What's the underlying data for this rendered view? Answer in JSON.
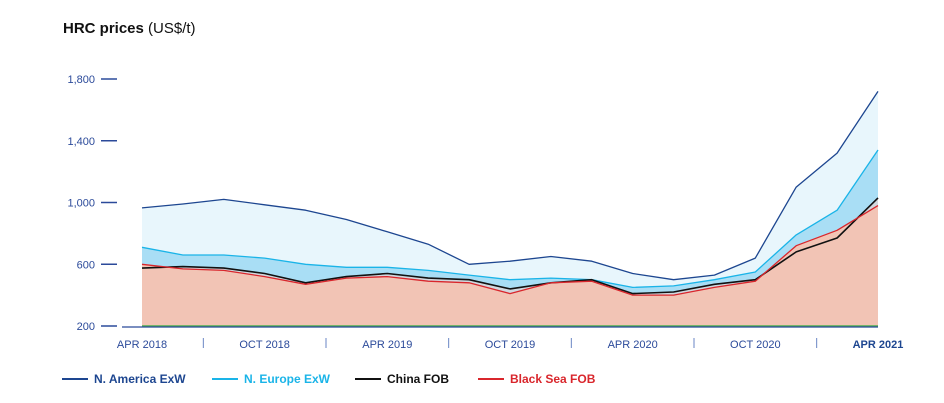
{
  "title": "HRC prices",
  "unit": "(US$/t)",
  "chart_data": {
    "type": "line",
    "title": "HRC prices",
    "ylabel": "US$/t",
    "ylim": [
      200,
      1800
    ],
    "yticks": [
      200,
      600,
      1000,
      1400,
      1800
    ],
    "ytick_labels": [
      "200",
      "600",
      "1,000",
      "1,400",
      "1,800"
    ],
    "x": [
      "2018-04",
      "2018-06",
      "2018-08",
      "2018-10",
      "2018-12",
      "2019-02",
      "2019-04",
      "2019-06",
      "2019-08",
      "2019-10",
      "2019-12",
      "2020-02",
      "2020-04",
      "2020-06",
      "2020-08",
      "2020-10",
      "2020-12",
      "2021-02",
      "2021-04"
    ],
    "xticks": [
      "2018-04",
      "2018-10",
      "2019-04",
      "2019-10",
      "2020-04",
      "2020-10",
      "2021-04"
    ],
    "xtick_labels": [
      "APR 2018",
      "OCT 2018",
      "APR 2019",
      "OCT 2019",
      "APR 2020",
      "OCT 2020",
      "APR 2021"
    ],
    "highlight_tick": "APR 2021",
    "legend_position": "bottom",
    "grid": false,
    "series": [
      {
        "name": "N. America ExW",
        "color": "#1d4690",
        "values": [
          965,
          990,
          1020,
          985,
          950,
          890,
          810,
          730,
          600,
          620,
          650,
          620,
          540,
          500,
          530,
          640,
          1100,
          1320,
          1720
        ]
      },
      {
        "name": "N. Europe ExW",
        "color": "#1ab4e8",
        "values": [
          710,
          660,
          660,
          640,
          600,
          580,
          580,
          560,
          530,
          500,
          510,
          500,
          450,
          460,
          500,
          550,
          790,
          950,
          1340
        ]
      },
      {
        "name": "China FOB",
        "color": "#111111",
        "values": [
          575,
          585,
          575,
          540,
          480,
          520,
          540,
          510,
          500,
          440,
          480,
          500,
          410,
          420,
          470,
          500,
          680,
          770,
          1030
        ]
      },
      {
        "name": "Black Sea FOB",
        "color": "#d9262c",
        "values": [
          600,
          570,
          560,
          520,
          470,
          510,
          520,
          490,
          480,
          410,
          480,
          490,
          400,
          400,
          450,
          490,
          720,
          820,
          980
        ]
      }
    ]
  }
}
